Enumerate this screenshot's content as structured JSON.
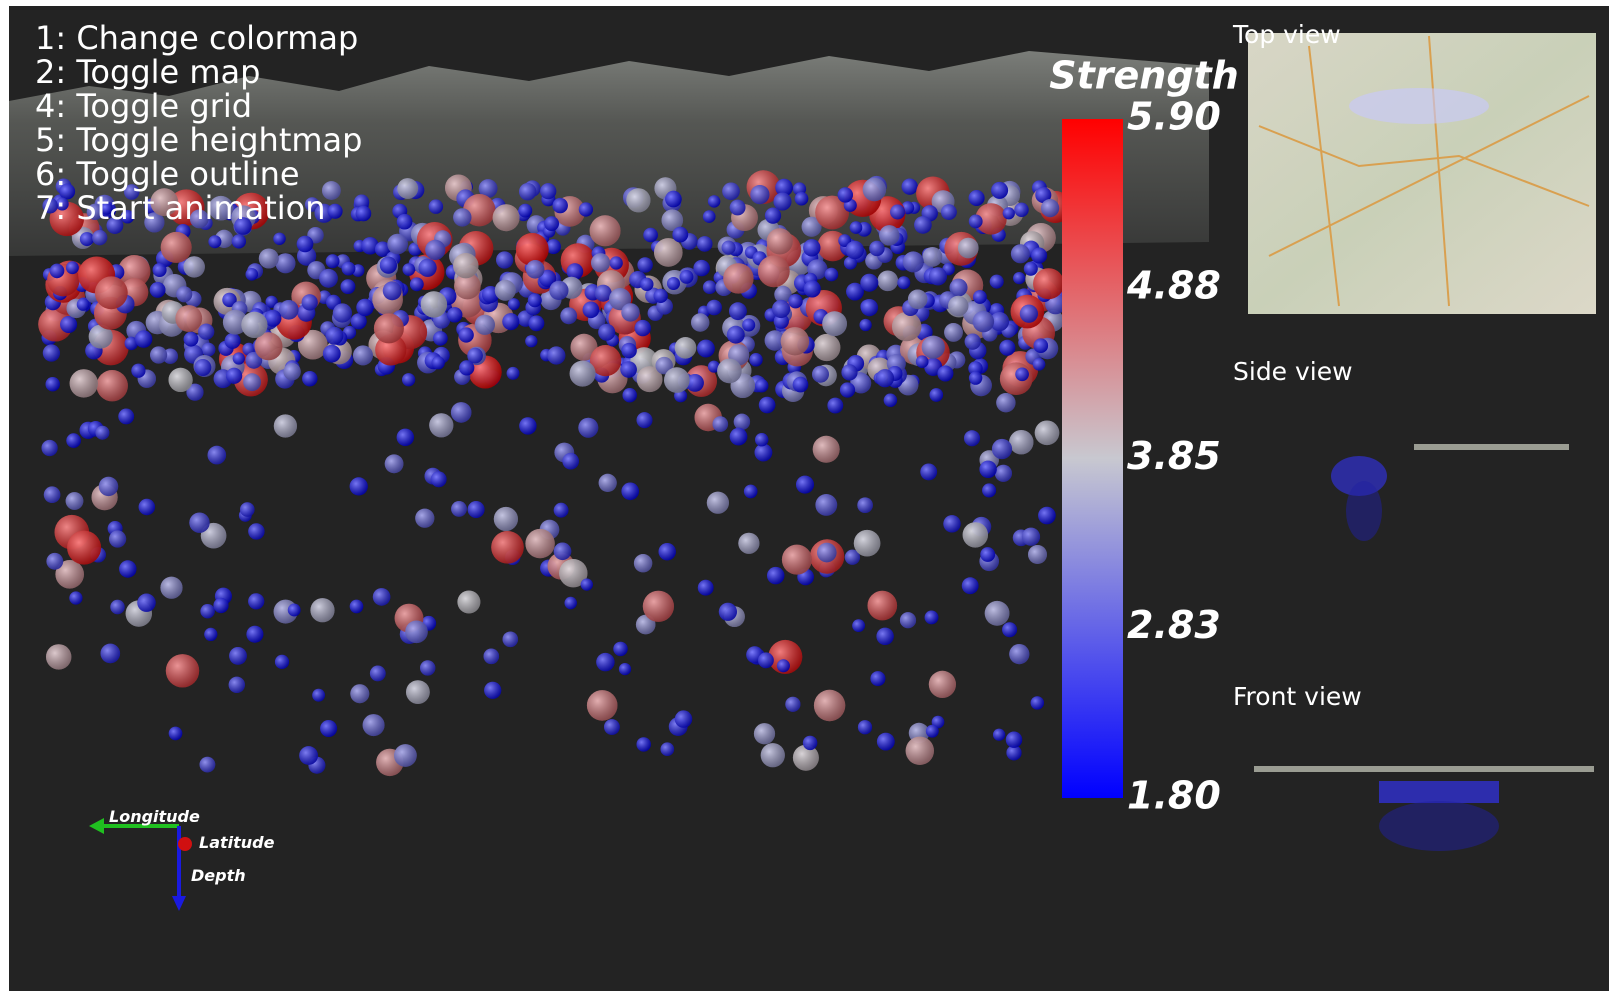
{
  "menu": [
    "1: Change colormap",
    "2: Toggle map",
    "4: Toggle grid",
    "5: Toggle heightmap",
    "6: Toggle outline",
    "7: Start animation"
  ],
  "colorbar": {
    "title": "Strength",
    "ticks": [
      {
        "value": 5.9,
        "label": "5.90"
      },
      {
        "value": 4.88,
        "label": "4.88"
      },
      {
        "value": 3.85,
        "label": "3.85"
      },
      {
        "value": 2.83,
        "label": "2.83"
      },
      {
        "value": 1.8,
        "label": "1.80"
      }
    ],
    "range": [
      1.8,
      5.9
    ]
  },
  "views": [
    "Top view",
    "Side view",
    "Front view"
  ],
  "axes": {
    "x": "Longitude",
    "y": "Latitude",
    "z": "Depth"
  }
}
